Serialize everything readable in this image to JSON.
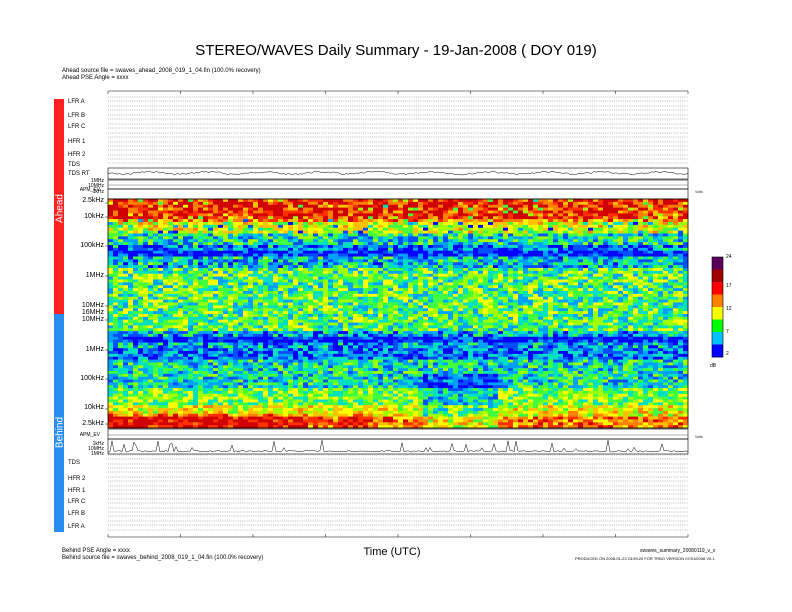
{
  "title": "STEREO/WAVES Daily Summary - 19-Jan-2008 ( DOY 019)",
  "ahead_source": "Ahead source file = swaves_ahead_2008_019_1_04.fin (100.0% recovery)",
  "ahead_pse": "Ahead PSE Angle = xxxx",
  "behind_pse": "Behind PSE Angle = xxxx",
  "behind_source": "Behind source file = swaves_behind_2008_019_1_04.fin (100.0% recovery)",
  "x_axis_label": "Time (UTC)",
  "footer_file": "swaves_summary_20080119_v_x",
  "footer_produced": "PRODUCED ON 2008-01-23 23:59:20 FOR TRBO VERSION 07/01/2008 V0.1",
  "side_labels": {
    "ahead": "Ahead",
    "behind": "Behind"
  },
  "ahead_rows": [
    "LFR A",
    "LFR B",
    "LFR C",
    "HFR 1",
    "HFR 2",
    "TDS",
    "TDS RT"
  ],
  "behind_rows": [
    "TDS",
    "HFR 2",
    "HFR 1",
    "LFR C",
    "LFR B",
    "LFR A"
  ],
  "ahead_freq_labels": [
    "2.5kHz",
    "10kHz",
    "100kHz",
    "1MHz",
    "10MHz"
  ],
  "behind_freq_labels": [
    "10MHz",
    "1MHz",
    "100kHz",
    "10kHz",
    "2.5kHz"
  ],
  "mid_freq_labels": [
    "16MHz",
    "16MHz"
  ],
  "small_freq_labels": {
    "ahead": [
      "1MHz",
      "10MHz",
      "1kHz"
    ],
    "behind": [
      "1kHz",
      "10MHz",
      "1MHz"
    ]
  },
  "apm_label_ahead": "APM_EV",
  "apm_label_behind": "APM_EV",
  "volts_label": "Volts",
  "colorbar": {
    "ticks": [
      "24",
      "17",
      "12",
      "7",
      "2"
    ],
    "unit": "dB",
    "colors": [
      "#5a005a",
      "#a00000",
      "#ff0000",
      "#ff8000",
      "#ffff00",
      "#00ff00",
      "#00c0ff",
      "#0000ff"
    ]
  },
  "chart_data": {
    "type": "heatmap",
    "title": "STEREO/WAVES Daily Summary - 19-Jan-2008 ( DOY 019)",
    "xlabel": "Time (UTC)",
    "ylabel": "",
    "panels": [
      {
        "name": "Ahead",
        "y_ticks": [
          "2.5kHz",
          "10kHz",
          "100kHz",
          "1MHz",
          "10MHz"
        ]
      },
      {
        "name": "Behind",
        "y_ticks": [
          "10MHz",
          "1MHz",
          "100kHz",
          "10kHz",
          "2.5kHz"
        ]
      }
    ],
    "color_scale": {
      "min": 2,
      "max": 24,
      "unit": "dB",
      "ticks": [
        24,
        17,
        12,
        7,
        2
      ]
    }
  }
}
